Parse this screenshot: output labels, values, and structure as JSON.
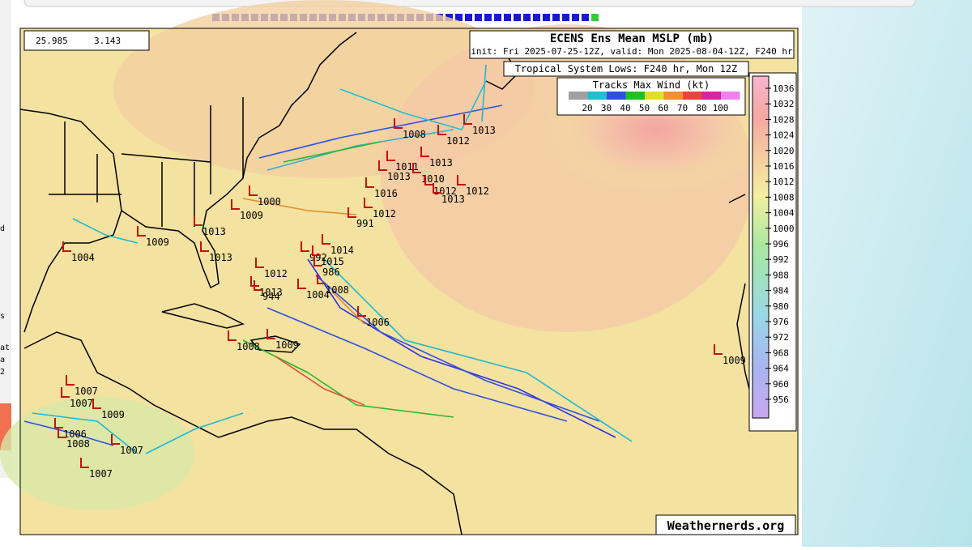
{
  "coords": {
    "lat": "25.985",
    "lon": "3.143"
  },
  "title": "ECENS Ens Mean MSLP (mb)",
  "subtitle": "init: Fri 2025-07-25-12Z, valid: Mon 2025-08-04-12Z, F240 hr",
  "lows_title": "Tropical System Lows: F240 hr, Mon 12Z",
  "wind_legend": {
    "title": "Tracks Max Wind (kt)",
    "levels": [
      20,
      30,
      40,
      50,
      60,
      70,
      80,
      100
    ]
  },
  "pressure_scale": [
    1036,
    1032,
    1028,
    1024,
    1020,
    1016,
    1012,
    1008,
    1004,
    1000,
    996,
    992,
    988,
    984,
    980,
    976,
    972,
    968,
    964,
    960,
    956
  ],
  "lows": [
    1008,
    1012,
    1013,
    1013,
    1011,
    1013,
    1010,
    1012,
    1012,
    1013,
    1016,
    1012,
    991,
    1000,
    1009,
    1013,
    1013,
    1004,
    1009,
    1014,
    992,
    1015,
    986,
    1012,
    1008,
    1004,
    1006,
    1013,
    944,
    1008,
    1009,
    1007,
    1007,
    1009,
    1006,
    1008,
    1007,
    1007,
    1009
  ],
  "credit": "Weathernerds.org",
  "sidebar": [
    "d",
    "s",
    "at",
    "a",
    "2"
  ]
}
